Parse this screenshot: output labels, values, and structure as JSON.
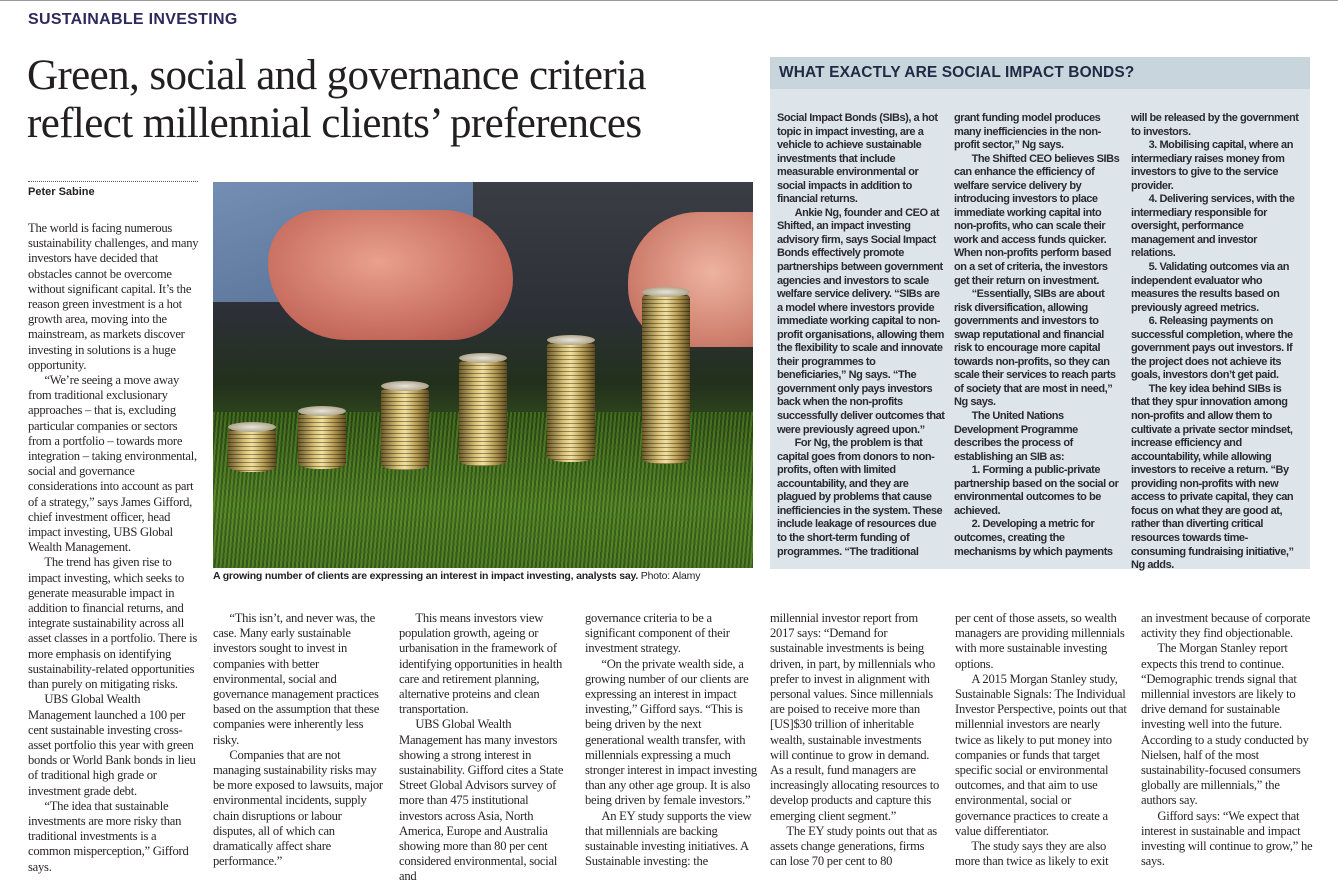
{
  "section_label": "SUSTAINABLE INVESTING",
  "headline": "Green, social and governance criteria reflect millennial clients’ preferences",
  "author": "Peter Sabine",
  "photo": {
    "caption": "A growing number of clients are expressing an interest in impact investing, analysts say.",
    "credit": "Photo: Alamy"
  },
  "article": {
    "columns": [
      {
        "continues": false,
        "paragraphs": [
          "The world is facing numerous sustainability challenges, and many investors have decided that obstacles cannot be overcome without significant capital. It’s the reason green investment is a hot growth area, moving into the mainstream, as markets discover investing in solutions is a huge opportunity.",
          "“We’re seeing a move away from traditional exclusionary approaches – that is, excluding particular companies or sectors from a portfolio – towards more integration – taking environmental, social and governance considerations into account as part of a strategy,” says James Gifford, chief investment officer, head impact investing, UBS Global Wealth Management.",
          "The trend has given rise to impact investing, which seeks to generate measurable impact in addition to financial returns, and integrate sustainability across all asset classes in a portfolio. There is more emphasis on identifying sustainability-related opportunities than purely on mitigating risks.",
          "UBS Global Wealth Management launched a 100 per cent sustainable investing cross-asset portfolio this year with green bonds or World Bank bonds in lieu of traditional high grade or investment grade debt.",
          "“The idea that sustainable investments are more risky than traditional investments is a common misperception,” Gifford says."
        ]
      },
      {
        "continues": false,
        "paragraphs": [
          "“This isn’t, and never was, the case. Many early sustainable investors sought to invest in companies with better environmental, social and governance management practices based on the assumption that these companies were inherently less risky.",
          "Companies that are not managing sustainability risks may be more exposed to lawsuits, major environmental incidents, supply chain disruptions or labour disputes, all of which can dramatically affect share performance.”"
        ]
      },
      {
        "continues": false,
        "paragraphs": [
          "This means investors view population growth, ageing or urbanisation in the framework of identifying opportunities in health care and retirement planning, alternative proteins and clean transportation.",
          "UBS Global Wealth Management has many investors showing a strong interest in sustainability. Gifford cites a State Street Global Advisors survey of more than 475 institutional investors across Asia, North America, Europe and Australia showing more than 80 per cent considered environmental, social and"
        ]
      },
      {
        "continues": true,
        "paragraphs": [
          "governance criteria to be a significant component of their investment strategy.",
          "“On the private wealth side, a growing number of our clients are expressing an interest in impact investing,” Gifford says. “This is being driven by the next generational wealth transfer, with millennials expressing a much stronger interest in impact investing than any other age group. It is also being driven by female investors.”",
          "An EY study supports the view that millennials are backing sustainable investing initiatives. A Sustainable investing: the"
        ]
      },
      {
        "continues": true,
        "paragraphs": [
          "millennial investor report from 2017 says: “Demand for sustainable investments is being driven, in part, by millennials who prefer to invest in alignment with personal values. Since millennials are poised to receive more than [US]$30 trillion of inheritable wealth, sustainable investments will continue to grow in demand. As a result, fund managers are increasingly allocating resources to develop products and capture this emerging client segment.”",
          "The EY study points out that as assets change generations, firms can lose 70 per cent to 80"
        ]
      },
      {
        "continues": true,
        "paragraphs": [
          "per cent of those assets, so wealth managers are providing millennials with more sustainable investing options.",
          "A 2015 Morgan Stanley study, Sustainable Signals: The Individual Investor Perspective, points out that millennial investors are nearly twice as likely to put money into companies or funds that target specific social or environmental outcomes, and that aim to use environmental, social or governance practices to create a value differentiator.",
          "The study says they are also more than twice as likely to exit"
        ]
      },
      {
        "continues": true,
        "paragraphs": [
          "an investment because of corporate activity they find objectionable.",
          "The Morgan Stanley report expects this trend to continue. “Demographic trends signal that millennial investors are likely to drive demand for sustainable investing well into the future. According to a study conducted by Nielsen, half of the most sustainability-focused consumers globally are millennials,” the authors say.",
          "Gifford says: “We expect that interest in sustainable and impact investing will continue to grow,” he says."
        ]
      }
    ]
  },
  "sidebar": {
    "title": "WHAT EXACTLY ARE SOCIAL IMPACT BONDS?",
    "columns": [
      {
        "continues": true,
        "paragraphs": [
          "Social Impact Bonds (SIBs), a hot topic in impact investing, are a vehicle to achieve sustainable investments that include measurable environmental or social impacts in addition to financial returns.",
          "Ankie Ng, founder and CEO at Shifted, an impact investing advisory firm, says Social Impact Bonds effectively promote partnerships between government agencies and investors to scale welfare service delivery. “SIBs are a model where investors provide immediate working capital to non-profit organisations, allowing them the flexibility to scale and innovate their programmes to beneficiaries,” Ng says. “The government only pays investors back when the non-profits successfully deliver outcomes that were previously agreed upon.”",
          "For Ng, the problem is that capital goes from donors to non-profits, often with limited accountability, and they are plagued by problems that cause inefficiencies in the system. These include leakage of resources due to the short-term funding of programmes. “The traditional"
        ]
      },
      {
        "continues": true,
        "paragraphs": [
          "grant funding model produces many inefficiencies in the non-profit sector,” Ng says.",
          "The Shifted CEO believes SIBs can enhance the efficiency of welfare service delivery by introducing investors to place immediate working capital into non-profits, who can scale their work and access funds quicker. When non-profits perform based on a set of criteria, the investors get their return on investment.",
          "“Essentially, SIBs are about risk diversification, allowing governments and investors to swap reputational and financial risk to encourage more capital towards non-profits, so they can scale their services to reach parts of society that are most in need,” Ng says.",
          "The United Nations Development Programme describes the process of establishing an SIB as:",
          "1. Forming a public-private partnership based on the social or environmental outcomes to be achieved.",
          "2. Developing a metric for outcomes, creating the mechanisms by which payments"
        ]
      },
      {
        "continues": true,
        "paragraphs": [
          "will be released by the government to investors.",
          "3. Mobilising capital, where an intermediary raises money from investors to give to the service provider.",
          "4. Delivering services, with the intermediary responsible for oversight, performance management and investor relations.",
          "5. Validating outcomes via an independent evaluator who measures the results based on previously agreed metrics.",
          "6. Releasing payments on successful completion, where the government pays out investors. If the project does not achieve its goals, investors don’t get paid.",
          "The key idea behind SIBs is that they spur innovation among non-profits and allow them to cultivate a private sector mindset, increase efficiency and accountability, while allowing investors to receive a return. “By providing non-profits with new access to private capital, they can focus on what they are good at, rather than diverting critical resources towards time-consuming fundraising initiative,” Ng adds."
        ]
      }
    ]
  }
}
